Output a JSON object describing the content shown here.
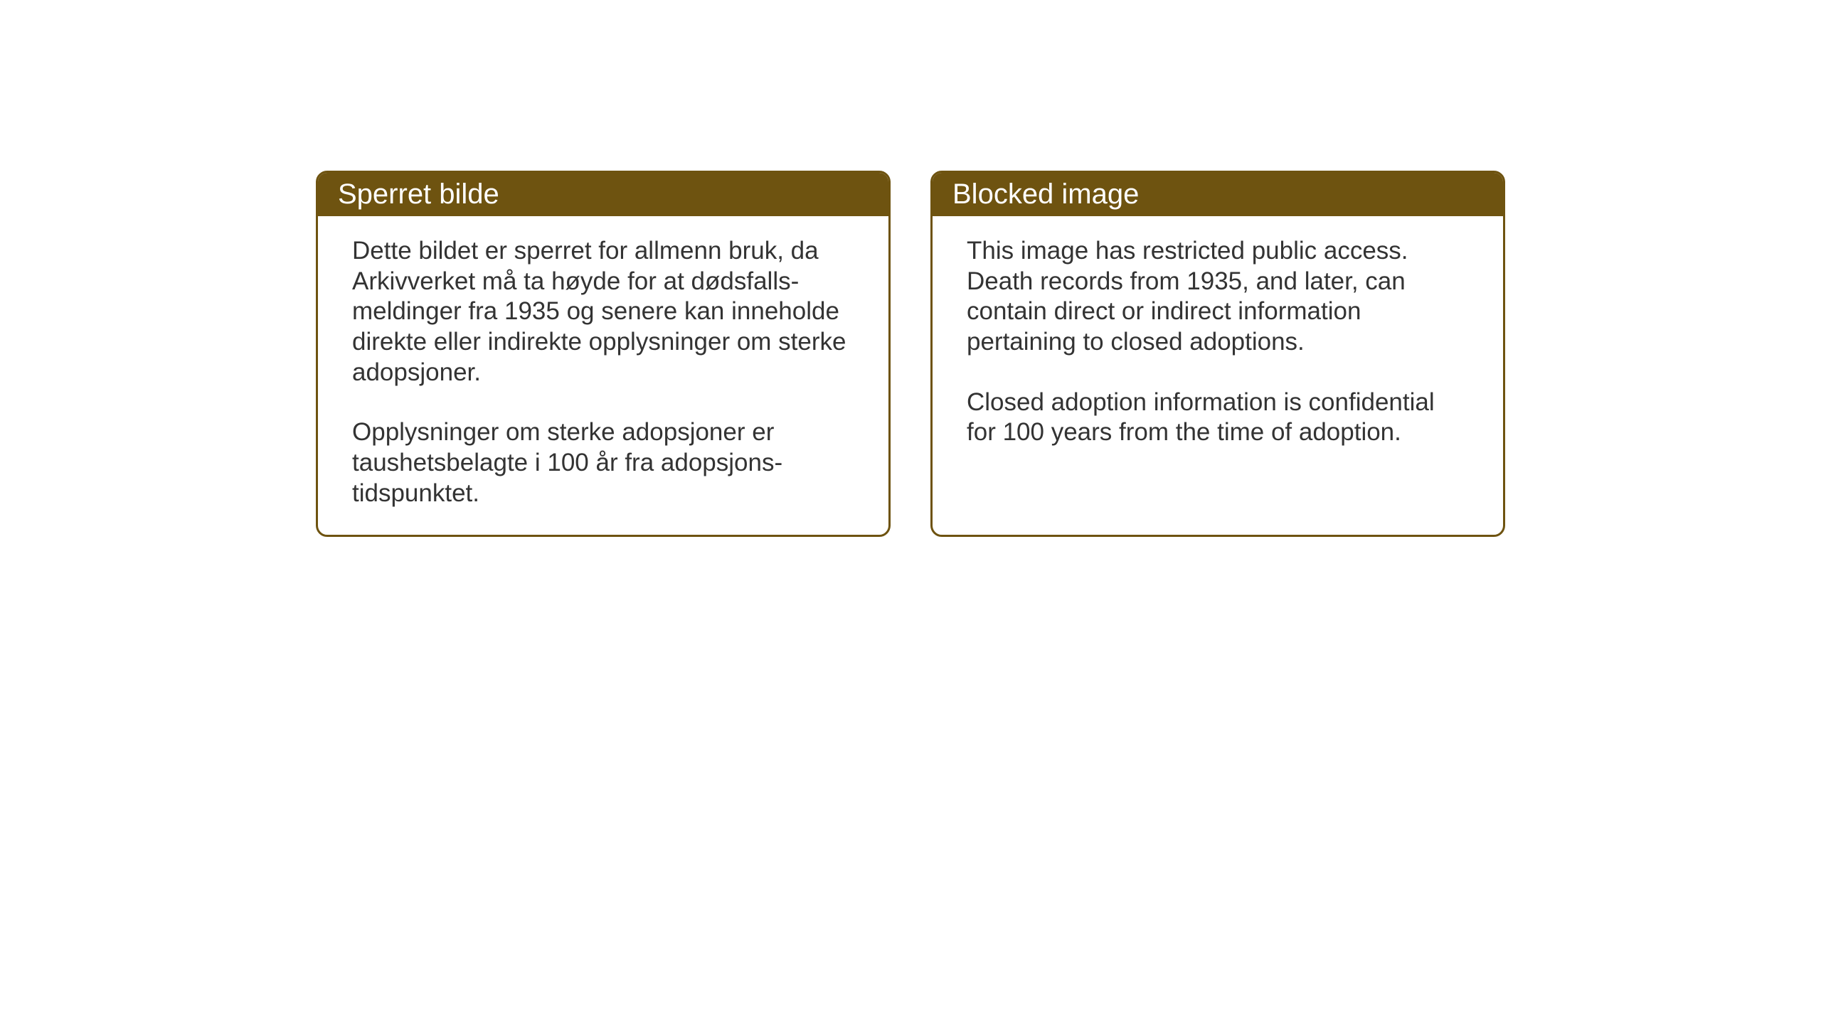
{
  "cards": {
    "norwegian": {
      "title": "Sperret bilde",
      "paragraph1": "Dette bildet er sperret for allmenn bruk, da Arkivverket må ta høyde for at dødsfalls-meldinger fra 1935 og senere kan inneholde direkte eller indirekte opplysninger om sterke adopsjoner.",
      "paragraph2": "Opplysninger om sterke adopsjoner er taushetsbelagte i 100 år fra adopsjons-tidspunktet."
    },
    "english": {
      "title": "Blocked image",
      "paragraph1": "This image has restricted public access. Death records from 1935, and later, can contain direct or indirect information pertaining to closed adoptions.",
      "paragraph2": "Closed adoption information is confidential for 100 years from the time of adoption."
    }
  },
  "styling": {
    "header_background": "#6e5310",
    "header_text_color": "#ffffff",
    "border_color": "#6e5310",
    "body_text_color": "#333333",
    "page_background": "#ffffff",
    "title_fontsize": 40,
    "body_fontsize": 35,
    "border_width": 3,
    "border_radius": 16
  }
}
